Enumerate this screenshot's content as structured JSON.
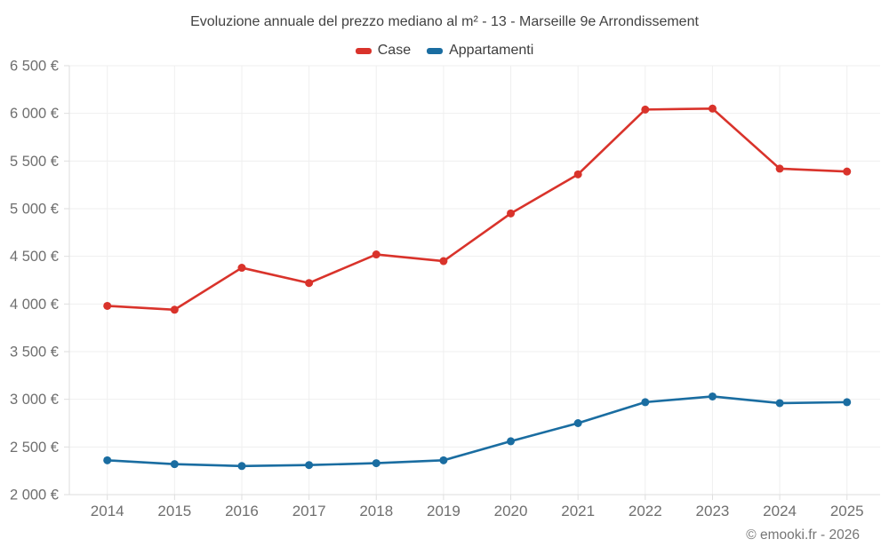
{
  "title": "Evoluzione annuale del prezzo mediano al m² - 13 - Marseille 9e Arrondissement",
  "legend": {
    "items": [
      {
        "label": "Case",
        "color": "#d9332b"
      },
      {
        "label": "Appartamenti",
        "color": "#1a6da1"
      }
    ]
  },
  "footer": {
    "copyright": "© emooki.fr - 2026"
  },
  "chart_data": {
    "type": "line",
    "title": "Evoluzione annuale del prezzo mediano al m² - 13 - Marseille 9e Arrondissement",
    "xlabel": "",
    "ylabel": "",
    "x": [
      "2014",
      "2015",
      "2016",
      "2017",
      "2018",
      "2019",
      "2020",
      "2021",
      "2022",
      "2023",
      "2024",
      "2025"
    ],
    "series": [
      {
        "name": "Case",
        "color": "#d9332b",
        "values": [
          3980,
          3940,
          4380,
          4220,
          4520,
          4450,
          4950,
          5360,
          6040,
          6050,
          5420,
          5390
        ]
      },
      {
        "name": "Appartamenti",
        "color": "#1a6da1",
        "values": [
          2360,
          2320,
          2300,
          2310,
          2330,
          2360,
          2560,
          2750,
          2970,
          3030,
          2960,
          2970
        ]
      }
    ],
    "ylim": [
      2000,
      6500
    ],
    "yticks": [
      {
        "value": 2000,
        "label": "2 000 €"
      },
      {
        "value": 2500,
        "label": "2 500 €"
      },
      {
        "value": 3000,
        "label": "3 000 €"
      },
      {
        "value": 3500,
        "label": "3 500 €"
      },
      {
        "value": 4000,
        "label": "4 000 €"
      },
      {
        "value": 4500,
        "label": "4 500 €"
      },
      {
        "value": 5000,
        "label": "5 000 €"
      },
      {
        "value": 5500,
        "label": "5 500 €"
      },
      {
        "value": 6000,
        "label": "6 000 €"
      },
      {
        "value": 6500,
        "label": "6 500 €"
      }
    ],
    "grid": true,
    "legend_position": "top"
  },
  "style_colors": {
    "grid": "#efefef",
    "axis": "#dedede",
    "axis_text": "#6f6f6f",
    "title_text": "#424242",
    "footer_text": "#767676"
  }
}
